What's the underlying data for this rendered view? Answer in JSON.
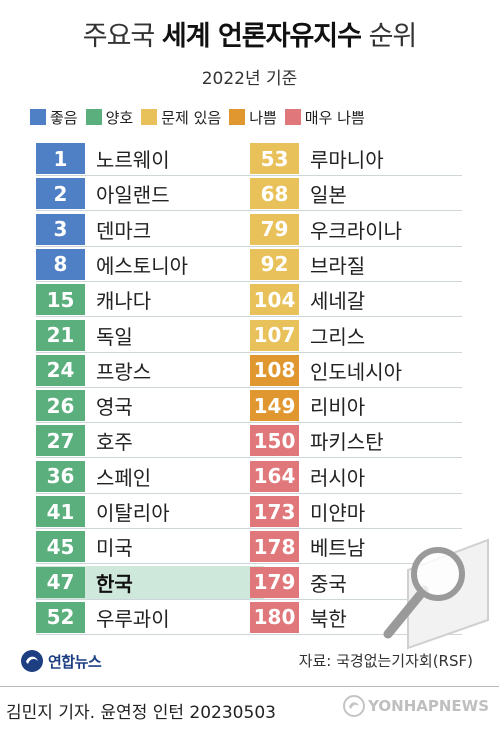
{
  "header": {
    "title_light_1": "주요국",
    "title_bold": "세계 언론자유지수",
    "title_light_2": "순위",
    "subtitle": "2022년 기준"
  },
  "legend": [
    {
      "label": "좋음",
      "color": "#4f7fc4"
    },
    {
      "label": "양호",
      "color": "#5aaf7d"
    },
    {
      "label": "문제 있음",
      "color": "#e8c15a"
    },
    {
      "label": "나쁨",
      "color": "#e0972f"
    },
    {
      "label": "매우 나쁨",
      "color": "#e0777a"
    }
  ],
  "chart_data": {
    "type": "table",
    "columns": [
      [
        {
          "rank": 1,
          "country": "노르웨이",
          "category": 0
        },
        {
          "rank": 2,
          "country": "아일랜드",
          "category": 0
        },
        {
          "rank": 3,
          "country": "덴마크",
          "category": 0
        },
        {
          "rank": 8,
          "country": "에스토니아",
          "category": 0
        },
        {
          "rank": 15,
          "country": "캐나다",
          "category": 1
        },
        {
          "rank": 21,
          "country": "독일",
          "category": 1
        },
        {
          "rank": 24,
          "country": "프랑스",
          "category": 1
        },
        {
          "rank": 26,
          "country": "영국",
          "category": 1
        },
        {
          "rank": 27,
          "country": "호주",
          "category": 1
        },
        {
          "rank": 36,
          "country": "스페인",
          "category": 1
        },
        {
          "rank": 41,
          "country": "이탈리아",
          "category": 1
        },
        {
          "rank": 45,
          "country": "미국",
          "category": 1
        },
        {
          "rank": 47,
          "country": "한국",
          "category": 1,
          "highlight": true
        },
        {
          "rank": 52,
          "country": "우루과이",
          "category": 1
        }
      ],
      [
        {
          "rank": 53,
          "country": "루마니아",
          "category": 2
        },
        {
          "rank": 68,
          "country": "일본",
          "category": 2
        },
        {
          "rank": 79,
          "country": "우크라이나",
          "category": 2
        },
        {
          "rank": 92,
          "country": "브라질",
          "category": 2
        },
        {
          "rank": 104,
          "country": "세네갈",
          "category": 2
        },
        {
          "rank": 107,
          "country": "그리스",
          "category": 2
        },
        {
          "rank": 108,
          "country": "인도네시아",
          "category": 3
        },
        {
          "rank": 149,
          "country": "리비아",
          "category": 3
        },
        {
          "rank": 150,
          "country": "파키스탄",
          "category": 4
        },
        {
          "rank": 164,
          "country": "러시아",
          "category": 4
        },
        {
          "rank": 173,
          "country": "미얀마",
          "category": 4
        },
        {
          "rank": 178,
          "country": "베트남",
          "category": 4
        },
        {
          "rank": 179,
          "country": "중국",
          "category": 4
        },
        {
          "rank": 180,
          "country": "북한",
          "category": 4
        }
      ]
    ]
  },
  "footer": {
    "logo_text": "연합뉴스",
    "source": "자료: 국경없는기자회(RSF)",
    "byline": "김민지 기자. 윤연정 인턴  20230503",
    "watermark": "YONHAPNEWS"
  },
  "icons": {
    "logo": "yonhap-logo-icon",
    "magnifier": "magnifying-glass-icon",
    "watermark": "yonhap-watermark-icon"
  }
}
